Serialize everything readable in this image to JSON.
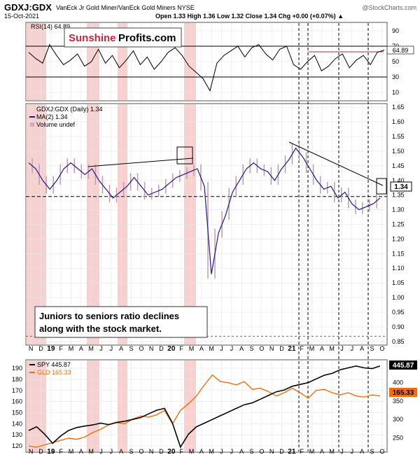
{
  "header": {
    "symbol": "GDXJ:GDX",
    "description": "VanEck Jr Gold Miner/VanEck Gold Miners  NYSE",
    "date": "15-Oct-2021",
    "watermark": "@StockCharts.com",
    "ohlc": "Open 1.33  High 1.36  Low 1.32  Close 1.34  Chg +0.00 (+0.07%) ▲"
  },
  "logo": {
    "part1": "Sunshine",
    "part2": "Profits.com"
  },
  "annotation": {
    "line1": "Juniors to seniors ratio declines",
    "line2": "along with the stock market."
  },
  "colors": {
    "price": "#1a1a8c",
    "ma": "#7a7ab8",
    "spy": "#000000",
    "gld": "#ef6f0f",
    "band": "#f4c0c0",
    "rsi": "#000000",
    "rsi_upper": "#a33333"
  },
  "chart_data": [
    {
      "type": "line",
      "name": "rsi-panel",
      "legend": "RSI(14) 64.89",
      "last_value": "64.89",
      "yticks": [
        "90",
        "70",
        "50",
        "30",
        "10"
      ],
      "ylim": [
        0,
        100
      ],
      "levels": [
        70,
        30
      ],
      "values": [
        62,
        54,
        48,
        72,
        58,
        46,
        52,
        60,
        44,
        50,
        66,
        48,
        58,
        42,
        52,
        64,
        46,
        56,
        40,
        50,
        62,
        68,
        58,
        44,
        36,
        28,
        12,
        48,
        58,
        64,
        70,
        56,
        68,
        72,
        60,
        52,
        66,
        70,
        46,
        40,
        50,
        58,
        38,
        44,
        54,
        60,
        42,
        52,
        58,
        46,
        62,
        65
      ]
    },
    {
      "type": "line",
      "name": "ratio-panel",
      "legend": [
        "GDXJ:GDX (Daily) 1.34",
        "MA(2) 1.34",
        "Volume undef"
      ],
      "x_labels": [
        "N",
        "D",
        "19",
        "F",
        "M",
        "A",
        "M",
        "J",
        "J",
        "A",
        "S",
        "O",
        "N",
        "D",
        "20",
        "F",
        "M",
        "A",
        "M",
        "J",
        "J",
        "A",
        "S",
        "O",
        "N",
        "D",
        "21",
        "F",
        "M",
        "A",
        "M",
        "J",
        "J",
        "A",
        "S",
        "O"
      ],
      "yticks": [
        "1.65",
        "1.60",
        "1.55",
        "1.50",
        "1.45",
        "1.40",
        "1.35",
        "1.30",
        "1.25",
        "1.20",
        "1.15",
        "1.10",
        "1.05",
        "1.00",
        "0.95",
        "0.90",
        "0.85"
      ],
      "ylim": [
        0.84,
        1.66
      ],
      "last_value": "1.34",
      "reference_level": 1.345,
      "values": [
        1.46,
        1.44,
        1.4,
        1.37,
        1.4,
        1.44,
        1.46,
        1.44,
        1.42,
        1.44,
        1.4,
        1.37,
        1.34,
        1.36,
        1.38,
        1.41,
        1.38,
        1.35,
        1.36,
        1.37,
        1.39,
        1.41,
        1.42,
        1.43,
        1.44,
        1.38,
        1.08,
        1.22,
        1.28,
        1.36,
        1.4,
        1.44,
        1.46,
        1.44,
        1.43,
        1.4,
        1.44,
        1.47,
        1.51,
        1.48,
        1.44,
        1.4,
        1.37,
        1.38,
        1.34,
        1.36,
        1.32,
        1.3,
        1.31,
        1.32,
        1.34
      ]
    },
    {
      "type": "line",
      "name": "spy-gld-panel",
      "legend": [
        "SPY 445.87",
        "GLD 165.33"
      ],
      "spy_last": "445.87",
      "gld_last": "165.33",
      "left_yticks": [
        "190",
        "180",
        "170",
        "160",
        "150",
        "140",
        "130",
        "120"
      ],
      "left_ylim": [
        115,
        197
      ],
      "right_yticks": [
        "400",
        "350",
        "300",
        "250"
      ],
      "right_ylim": [
        213,
        460
      ],
      "spy": [
        270,
        280,
        260,
        235,
        255,
        270,
        278,
        282,
        285,
        290,
        286,
        292,
        295,
        300,
        305,
        315,
        325,
        330,
        290,
        225,
        260,
        280,
        290,
        300,
        310,
        320,
        330,
        340,
        345,
        355,
        365,
        375,
        380,
        390,
        395,
        400,
        410,
        420,
        425,
        435,
        440,
        445,
        440,
        438,
        445
      ],
      "gld": [
        120,
        119,
        121,
        123,
        125,
        127,
        126,
        128,
        132,
        135,
        139,
        141,
        140,
        144,
        147,
        146,
        148,
        152,
        140,
        152,
        158,
        165,
        175,
        184,
        178,
        177,
        175,
        178,
        171,
        172,
        169,
        165,
        168,
        172,
        168,
        163,
        170,
        171,
        168,
        166,
        168,
        165,
        164,
        166,
        165
      ]
    }
  ]
}
